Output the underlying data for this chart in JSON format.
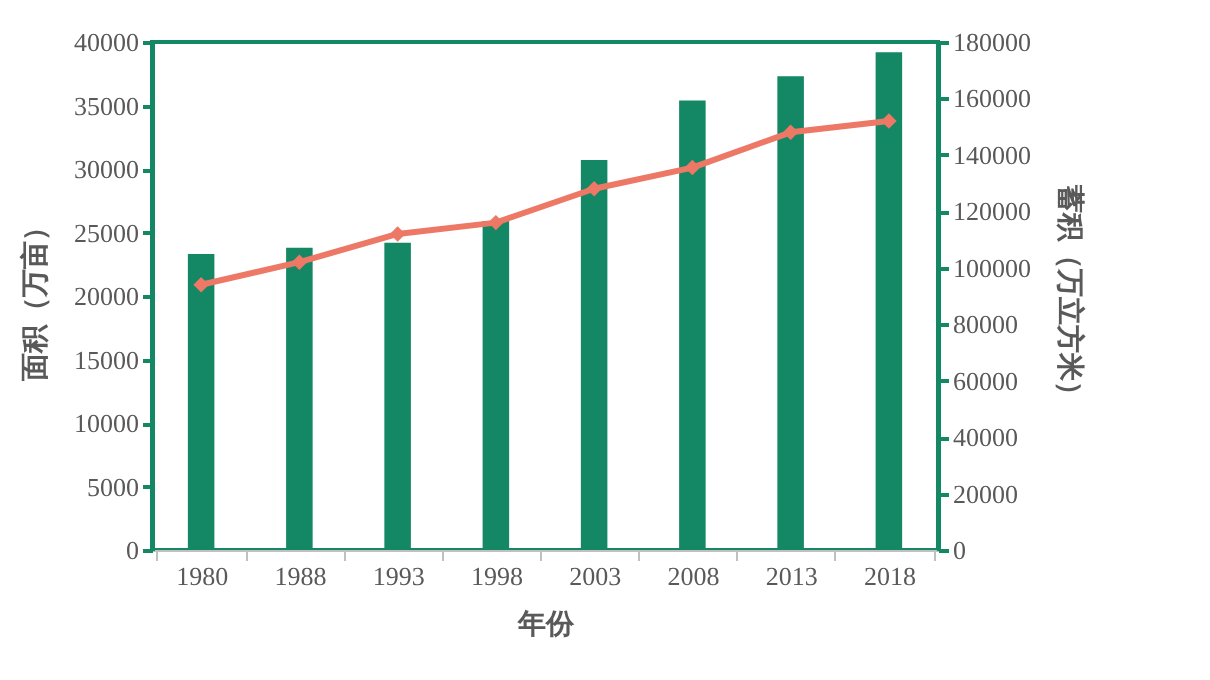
{
  "chart_data": {
    "type": "bar",
    "xlabel": "年份",
    "ylabel": "面积（万亩）",
    "y2label": "蓄积（万立方米）",
    "categories": [
      "1980",
      "1988",
      "1993",
      "1998",
      "2003",
      "2008",
      "2013",
      "2018"
    ],
    "series": [
      {
        "color": "#148764",
        "values": [
          23300,
          23800,
          24200,
          25900,
          30700,
          35400,
          37300,
          39200
        ]
      },
      {
        "type": "line",
        "axis": "y2",
        "color": "#ec7865",
        "marker": "diamond",
        "line_style": "solid",
        "values": [
          94000,
          102000,
          112000,
          116000,
          128000,
          135500,
          148000,
          152000
        ]
      }
    ],
    "ylim": [
      0,
      40000
    ],
    "yticks": [
      0,
      5000,
      10000,
      15000,
      20000,
      25000,
      30000,
      35000,
      40000
    ],
    "y2lim": [
      0,
      180000
    ],
    "y2ticks": [
      0,
      20000,
      40000,
      60000,
      80000,
      100000,
      120000,
      140000,
      160000,
      180000
    ],
    "grid": false
  }
}
